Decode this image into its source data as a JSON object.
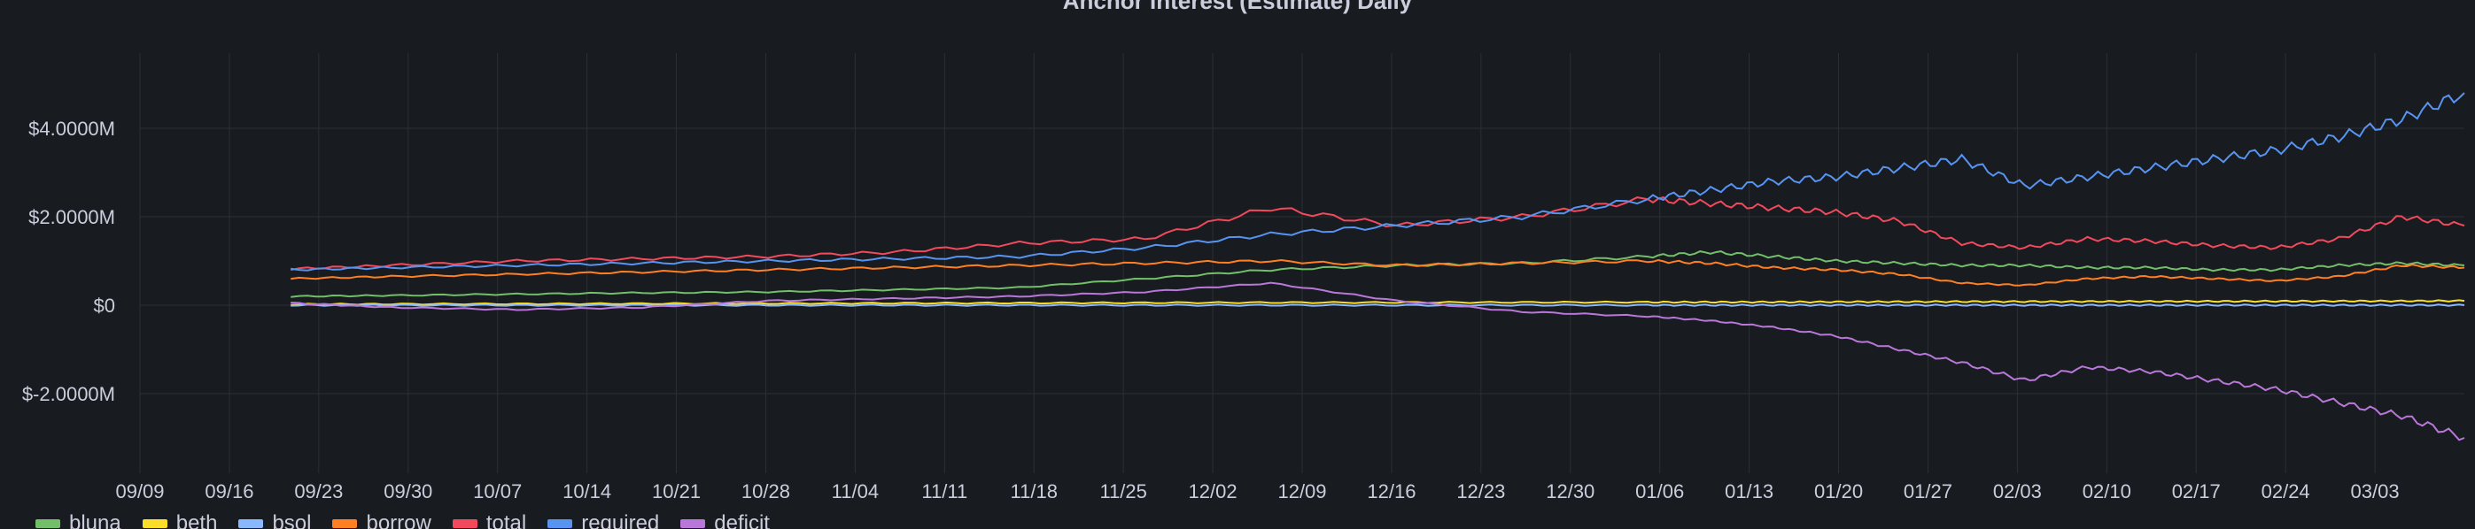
{
  "chart_data": {
    "type": "line",
    "title": "Anchor Interest (Estimate) Daily",
    "xlabel": "",
    "ylabel": "",
    "x_ticks": [
      "09/09",
      "09/16",
      "09/23",
      "09/30",
      "10/07",
      "10/14",
      "10/21",
      "10/28",
      "11/04",
      "11/11",
      "11/18",
      "11/25",
      "12/02",
      "12/09",
      "12/16",
      "12/23",
      "12/30",
      "01/06",
      "01/13",
      "01/20",
      "01/27",
      "02/03",
      "02/10",
      "02/17",
      "02/24",
      "03/03"
    ],
    "y_ticks": [
      "$-2.0000M",
      "$0",
      "$2.0000M",
      "$4.0000M"
    ],
    "y_tick_values": [
      -2000000,
      0,
      2000000,
      4000000
    ],
    "ylim": [
      -3800000,
      5700000
    ],
    "xlim": [
      0,
      185
    ],
    "grid": true,
    "legend_position": "bottom-left",
    "x": [
      12,
      20,
      30,
      40,
      50,
      60,
      70,
      80,
      90,
      100,
      110,
      120,
      125,
      130,
      135,
      140,
      145,
      150,
      155,
      160,
      165,
      170,
      175,
      180,
      185
    ],
    "series": [
      {
        "name": "bluna",
        "color": "#73bf69",
        "values": [
          200000,
          220000,
          250000,
          280000,
          300000,
          350000,
          400000,
          600000,
          800000,
          900000,
          950000,
          1100000,
          1200000,
          1100000,
          1000000,
          950000,
          900000,
          900000,
          850000,
          850000,
          800000,
          800000,
          900000,
          950000,
          900000
        ]
      },
      {
        "name": "beth",
        "color": "#fade2a",
        "values": [
          20000,
          25000,
          30000,
          35000,
          40000,
          45000,
          50000,
          55000,
          60000,
          62000,
          65000,
          68000,
          70000,
          72000,
          75000,
          78000,
          80000,
          82000,
          84000,
          86000,
          88000,
          90000,
          92000,
          95000,
          98000
        ]
      },
      {
        "name": "bsol",
        "color": "#8ab8ff",
        "values": [
          0,
          0,
          0,
          0,
          0,
          0,
          0,
          0,
          0,
          0,
          0,
          0,
          0,
          0,
          0,
          0,
          0,
          0,
          0,
          0,
          0,
          0,
          0,
          0,
          0
        ]
      },
      {
        "name": "borrow",
        "color": "#ff7f22",
        "values": [
          600000,
          650000,
          700000,
          750000,
          800000,
          850000,
          900000,
          950000,
          1000000,
          900000,
          950000,
          1000000,
          950000,
          850000,
          800000,
          700000,
          500000,
          450000,
          600000,
          650000,
          600000,
          550000,
          650000,
          900000,
          850000
        ]
      },
      {
        "name": "total",
        "color": "#f2495c",
        "values": [
          820000,
          900000,
          1000000,
          1050000,
          1100000,
          1200000,
          1400000,
          1500000,
          2200000,
          1800000,
          2000000,
          2400000,
          2300000,
          2200000,
          2100000,
          1900000,
          1400000,
          1300000,
          1500000,
          1450000,
          1350000,
          1300000,
          1500000,
          2000000,
          1800000
        ]
      },
      {
        "name": "required",
        "color": "#5794f2",
        "values": [
          800000,
          850000,
          900000,
          950000,
          1000000,
          1050000,
          1100000,
          1300000,
          1600000,
          1800000,
          2000000,
          2400000,
          2600000,
          2800000,
          2900000,
          3100000,
          3300000,
          2700000,
          2900000,
          3100000,
          3300000,
          3500000,
          3800000,
          4200000,
          4800000
        ]
      },
      {
        "name": "deficit",
        "color": "#b877d9",
        "values": [
          50000,
          -50000,
          -100000,
          -50000,
          100000,
          150000,
          200000,
          300000,
          500000,
          100000,
          -150000,
          -250000,
          -350000,
          -500000,
          -700000,
          -1000000,
          -1300000,
          -1700000,
          -1400000,
          -1500000,
          -1700000,
          -1900000,
          -2200000,
          -2500000,
          -3000000
        ]
      }
    ]
  }
}
